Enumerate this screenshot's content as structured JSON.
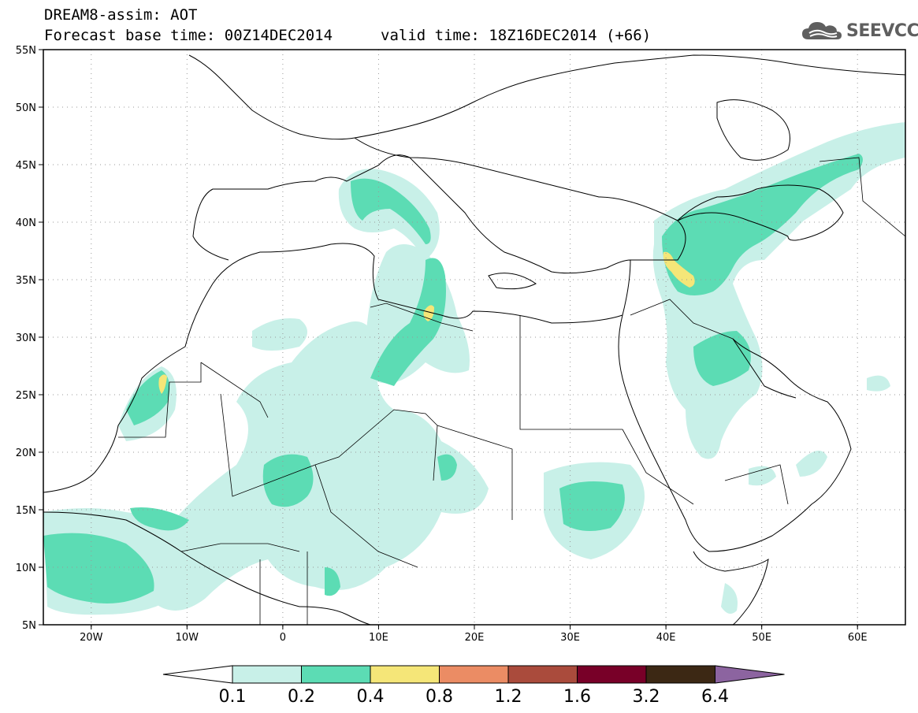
{
  "header": {
    "title_line1": "DREAM8-assim: AOT",
    "title_line2": "Forecast base time: 00Z14DEC2014",
    "valid_time": "valid time: 18Z16DEC2014 (+66)"
  },
  "logo": {
    "text": "SEEVCCC",
    "icon": "cloud-icon"
  },
  "map": {
    "lat_labels": [
      "55N",
      "50N",
      "45N",
      "40N",
      "35N",
      "30N",
      "25N",
      "20N",
      "15N",
      "10N",
      "5N"
    ],
    "lon_labels": [
      "20W",
      "10W",
      "0",
      "10E",
      "20E",
      "30E",
      "40E",
      "50E",
      "60E"
    ],
    "lat_range": [
      5,
      55
    ],
    "lon_range": [
      -25,
      65
    ],
    "grid": "dotted"
  },
  "colorbar": {
    "levels": [
      "0.1",
      "0.2",
      "0.4",
      "0.8",
      "1.2",
      "1.6",
      "3.2",
      "6.4"
    ],
    "colors": [
      "#ffffff",
      "#c8f0e8",
      "#5cdcb4",
      "#f5e678",
      "#eb8c64",
      "#aa4b3c",
      "#780028",
      "#3c2814",
      "#8c64a0"
    ]
  },
  "colors": {
    "low": "#c8f0e8",
    "mid": "#5cdcb4",
    "high": "#f5e678"
  }
}
